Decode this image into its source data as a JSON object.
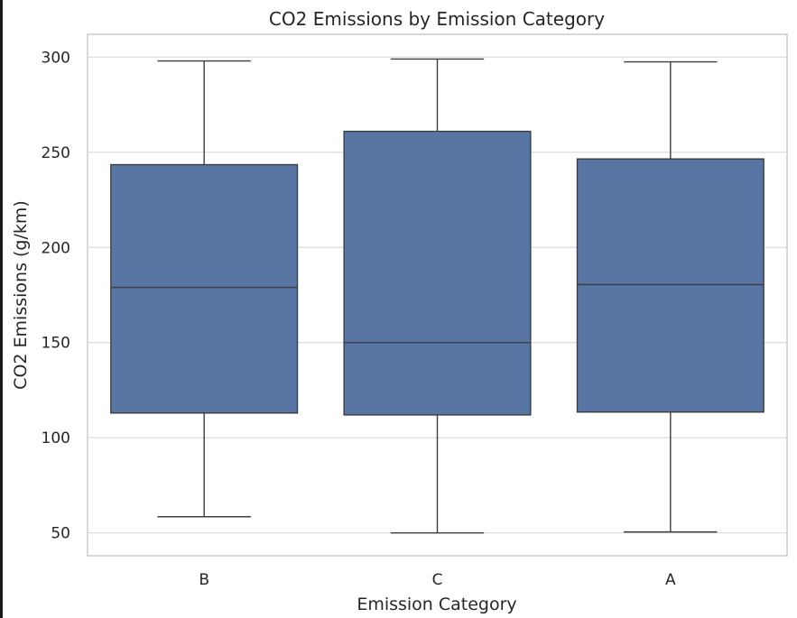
{
  "chart_data": {
    "type": "box",
    "title": "CO2 Emissions by Emission Category",
    "xlabel": "Emission Category",
    "ylabel": "CO2 Emissions (g/km)",
    "ylim": [
      38,
      312
    ],
    "yticks": [
      50,
      100,
      150,
      200,
      250,
      300
    ],
    "grid": true,
    "color": "#5875a4",
    "edge_color": "#3d3d3d",
    "categories": [
      "B",
      "C",
      "A"
    ],
    "boxes": [
      {
        "category": "B",
        "whisker_low": 58.5,
        "q1": 113,
        "median": 179,
        "q3": 243.5,
        "whisker_high": 298
      },
      {
        "category": "C",
        "whisker_low": 50,
        "q1": 112,
        "median": 150,
        "q3": 261,
        "whisker_high": 299
      },
      {
        "category": "A",
        "whisker_low": 50.5,
        "q1": 113.5,
        "median": 180.5,
        "q3": 246.5,
        "whisker_high": 297.5
      }
    ]
  }
}
